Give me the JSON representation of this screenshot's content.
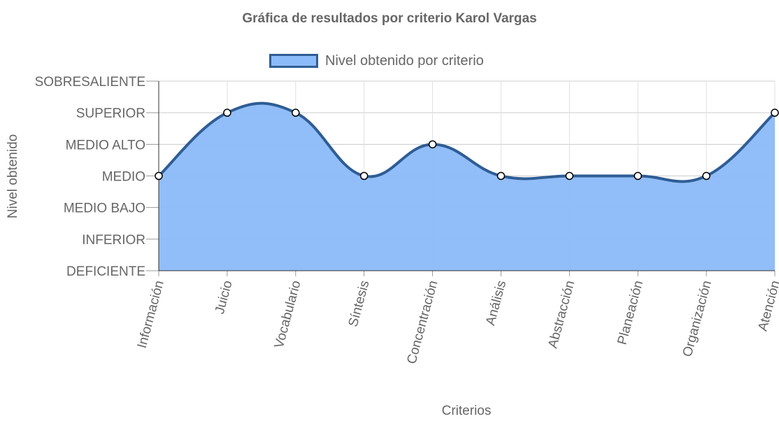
{
  "chart_data": {
    "type": "area",
    "title": "Gráfica de resultados por criterio Karol Vargas",
    "xlabel": "Criterios",
    "ylabel": "Nivel obtenido",
    "legend": {
      "position": "top",
      "label": "Nivel obtenido por criterio"
    },
    "y_levels": [
      "DEFICIENTE",
      "INFERIOR",
      "MEDIO BAJO",
      "MEDIO",
      "MEDIO ALTO",
      "SUPERIOR",
      "SOBRESALIENTE"
    ],
    "categories": [
      "Información",
      "Juicio",
      "Vocabulario",
      "Síntesis",
      "Concentración",
      "Análisis",
      "Abstracción",
      "Planeación",
      "Organización",
      "Atención"
    ],
    "series": [
      {
        "name": "Nivel obtenido por criterio",
        "values": [
          3,
          5,
          5,
          3,
          4,
          3,
          3,
          3,
          3,
          5
        ]
      }
    ],
    "ylim": [
      0,
      6
    ],
    "grid": true,
    "colors": {
      "fill": "#8bbbf8",
      "line": "#2f5d94",
      "grid": "#cccccc",
      "axis": "#333333"
    }
  }
}
